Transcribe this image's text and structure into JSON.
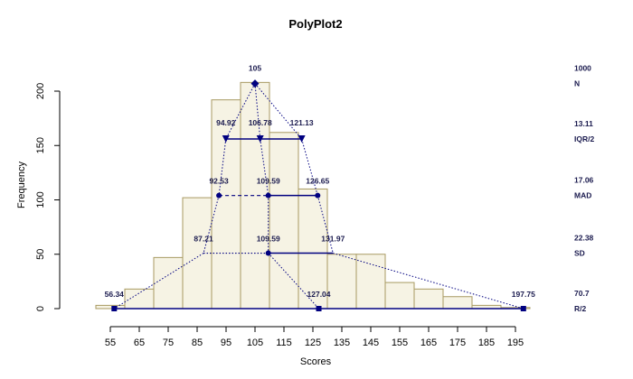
{
  "chart_data": {
    "type": "bar",
    "title": "PolyPlot2",
    "xlabel": "Scores",
    "ylabel": "Frequency",
    "xlim": [
      50,
      200
    ],
    "ylim": [
      0,
      210
    ],
    "x_ticks": [
      55,
      65,
      75,
      85,
      95,
      105,
      115,
      125,
      135,
      145,
      155,
      165,
      175,
      185,
      195
    ],
    "y_ticks": [
      0,
      50,
      100,
      150,
      200
    ],
    "bin_edges": [
      40,
      50,
      60,
      70,
      80,
      90,
      100,
      110,
      120,
      130,
      140,
      150,
      160,
      170,
      180,
      190,
      200
    ],
    "frequencies": [
      0,
      3,
      18,
      47,
      102,
      192,
      208,
      162,
      110,
      50,
      50,
      24,
      18,
      11,
      3,
      1
    ],
    "colors": {
      "bar_fill": "#f6f3e4",
      "bar_stroke": "#a89a62",
      "annotation": "#000080",
      "annotation_text": "#1a1a4e"
    },
    "levels": [
      {
        "id": "top",
        "y": 207,
        "points": [
          {
            "x": 105,
            "label": "105",
            "marker": "diamond"
          }
        ]
      },
      {
        "id": "iqr",
        "y": 156,
        "points": [
          {
            "x": 94.92,
            "label": "94.92",
            "marker": "triangle"
          },
          {
            "x": 106.78,
            "label": "106.78",
            "marker": "triangle"
          },
          {
            "x": 121.13,
            "label": "121.13",
            "marker": "triangle"
          }
        ],
        "segments": [
          {
            "from": 94.92,
            "to": 121.13,
            "style": "solid"
          }
        ]
      },
      {
        "id": "mad",
        "y": 104,
        "points": [
          {
            "x": 92.53,
            "label": "92.53",
            "marker": "circle"
          },
          {
            "x": 109.59,
            "label": "109.59",
            "marker": "circle"
          },
          {
            "x": 126.65,
            "label": "126.65",
            "marker": "circle"
          }
        ],
        "segments": [
          {
            "from": 92.53,
            "to": 109.59,
            "style": "dashed"
          },
          {
            "from": 109.59,
            "to": 126.65,
            "style": "solid"
          }
        ]
      },
      {
        "id": "sd",
        "y": 51,
        "points": [
          {
            "x": 87.21,
            "label": "87.21",
            "marker": "none"
          },
          {
            "x": 109.59,
            "label": "109.59",
            "marker": "circle"
          },
          {
            "x": 131.97,
            "label": "131.97",
            "marker": "none"
          }
        ],
        "segments": [
          {
            "from": 87.21,
            "to": 109.59,
            "style": "dotted"
          },
          {
            "from": 109.59,
            "to": 131.97,
            "style": "solid"
          }
        ]
      },
      {
        "id": "range",
        "y": 0,
        "points": [
          {
            "x": 56.34,
            "label": "56.34",
            "marker": "square"
          },
          {
            "x": 127.04,
            "label": "127.04",
            "marker": "square"
          },
          {
            "x": 197.75,
            "label": "197.75",
            "marker": "square"
          }
        ],
        "segments": [
          {
            "from": 56.34,
            "to": 197.75,
            "style": "solid"
          }
        ]
      }
    ],
    "connectors": [
      [
        [
          105,
          207
        ],
        [
          94.92,
          156
        ]
      ],
      [
        [
          105,
          207
        ],
        [
          106.78,
          156
        ]
      ],
      [
        [
          105,
          207
        ],
        [
          121.13,
          156
        ]
      ],
      [
        [
          94.92,
          156
        ],
        [
          92.53,
          104
        ]
      ],
      [
        [
          106.78,
          156
        ],
        [
          109.59,
          104
        ]
      ],
      [
        [
          121.13,
          156
        ],
        [
          126.65,
          104
        ]
      ],
      [
        [
          92.53,
          104
        ],
        [
          87.21,
          51
        ]
      ],
      [
        [
          109.59,
          104
        ],
        [
          109.59,
          51
        ]
      ],
      [
        [
          126.65,
          104
        ],
        [
          131.97,
          51
        ]
      ],
      [
        [
          87.21,
          51
        ],
        [
          56.34,
          0
        ]
      ],
      [
        [
          109.59,
          51
        ],
        [
          127.04,
          0
        ]
      ],
      [
        [
          131.97,
          51
        ],
        [
          197.75,
          0
        ]
      ]
    ],
    "side_stats": [
      {
        "value": "1000",
        "name": "N",
        "y": 207
      },
      {
        "value": "13.11",
        "name": "IQR/2",
        "y": 156
      },
      {
        "value": "17.06",
        "name": "MAD",
        "y": 104
      },
      {
        "value": "22.38",
        "name": "SD",
        "y": 51
      },
      {
        "value": "70.7",
        "name": "R/2",
        "y": 0
      }
    ]
  }
}
